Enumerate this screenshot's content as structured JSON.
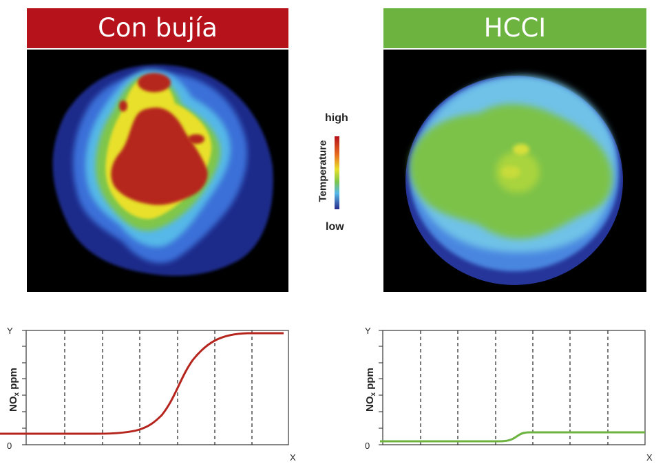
{
  "panels": {
    "left": {
      "title": "Con bujía",
      "title_color": "#b5121b",
      "curve_color": "#b5251e"
    },
    "right": {
      "title": "HCCI",
      "title_color": "#6cb33f",
      "curve_color": "#6cb33f"
    }
  },
  "legend": {
    "high": "high",
    "low": "low",
    "title": "Temperature"
  },
  "axes": {
    "y_top": "Y",
    "y_zero": "0",
    "x_end": "X",
    "ylabel_main": "NO",
    "ylabel_sub": "x",
    "ylabel_unit": " ppm"
  }
}
